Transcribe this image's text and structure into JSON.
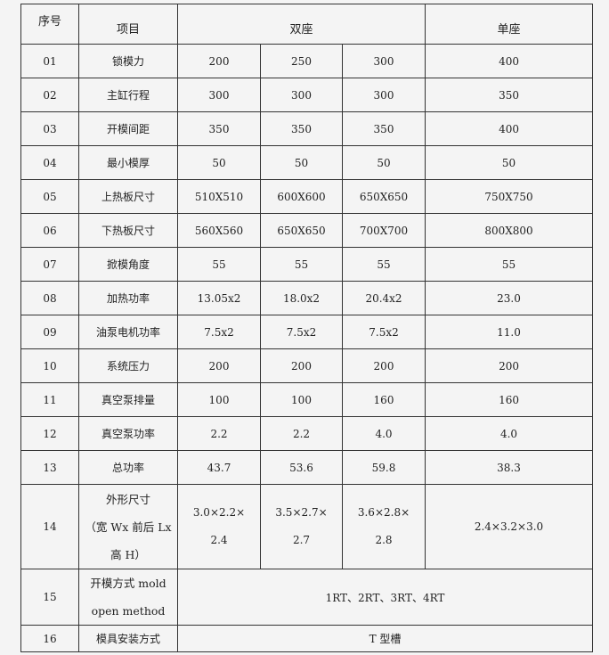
{
  "header": {
    "seq": "序号",
    "item": "项目",
    "double": "双座",
    "single": "单座"
  },
  "rows": [
    {
      "no": "01",
      "item": "锁模力",
      "d1": "200",
      "d2": "250",
      "d3": "300",
      "s": "400"
    },
    {
      "no": "02",
      "item": "主缸行程",
      "d1": "300",
      "d2": "300",
      "d3": "300",
      "s": "350"
    },
    {
      "no": "03",
      "item": "开模间距",
      "d1": "350",
      "d2": "350",
      "d3": "350",
      "s": "400"
    },
    {
      "no": "04",
      "item": "最小模厚",
      "d1": "50",
      "d2": "50",
      "d3": "50",
      "s": "50"
    },
    {
      "no": "05",
      "item": "上热板尺寸",
      "d1": "510X510",
      "d2": "600X600",
      "d3": "650X650",
      "s": "750X750"
    },
    {
      "no": "06",
      "item": "下热板尺寸",
      "d1": "560X560",
      "d2": "650X650",
      "d3": "700X700",
      "s": "800X800"
    },
    {
      "no": "07",
      "item": "掀模角度",
      "d1": "55",
      "d2": "55",
      "d3": "55",
      "s": "55"
    },
    {
      "no": "08",
      "item": "加热功率",
      "d1": "13.05x2",
      "d2": "18.0x2",
      "d3": "20.4x2",
      "s": "23.0"
    },
    {
      "no": "09",
      "item": "油泵电机功率",
      "d1": "7.5x2",
      "d2": "7.5x2",
      "d3": "7.5x2",
      "s": "11.0"
    },
    {
      "no": "10",
      "item": "系统压力",
      "d1": "200",
      "d2": "200",
      "d3": "200",
      "s": "200"
    },
    {
      "no": "11",
      "item": "真空泵排量",
      "d1": "100",
      "d2": "100",
      "d3": "160",
      "s": "160"
    },
    {
      "no": "12",
      "item": "真空泵功率",
      "d1": "2.2",
      "d2": "2.2",
      "d3": "4.0",
      "s": "4.0"
    },
    {
      "no": "13",
      "item": "总功率",
      "d1": "43.7",
      "d2": "53.6",
      "d3": "59.8",
      "s": "38.3"
    },
    {
      "no": "14",
      "item_lines": [
        "外形尺寸",
        "（宽 Wx 前后 Lx",
        "高 H）"
      ],
      "d1_lines": [
        "3.0×2.2×",
        "2.4"
      ],
      "d2_lines": [
        "3.5×2.7×",
        "2.7"
      ],
      "d3_lines": [
        "3.6×2.8×",
        "2.8"
      ],
      "s": "2.4×3.2×3.0"
    },
    {
      "no": "15",
      "item_lines": [
        "开模方式 mold",
        "open method"
      ],
      "value": "1RT、2RT、3RT、4RT"
    },
    {
      "no": "16",
      "item": "模具安装方式",
      "value": "T 型槽"
    }
  ]
}
